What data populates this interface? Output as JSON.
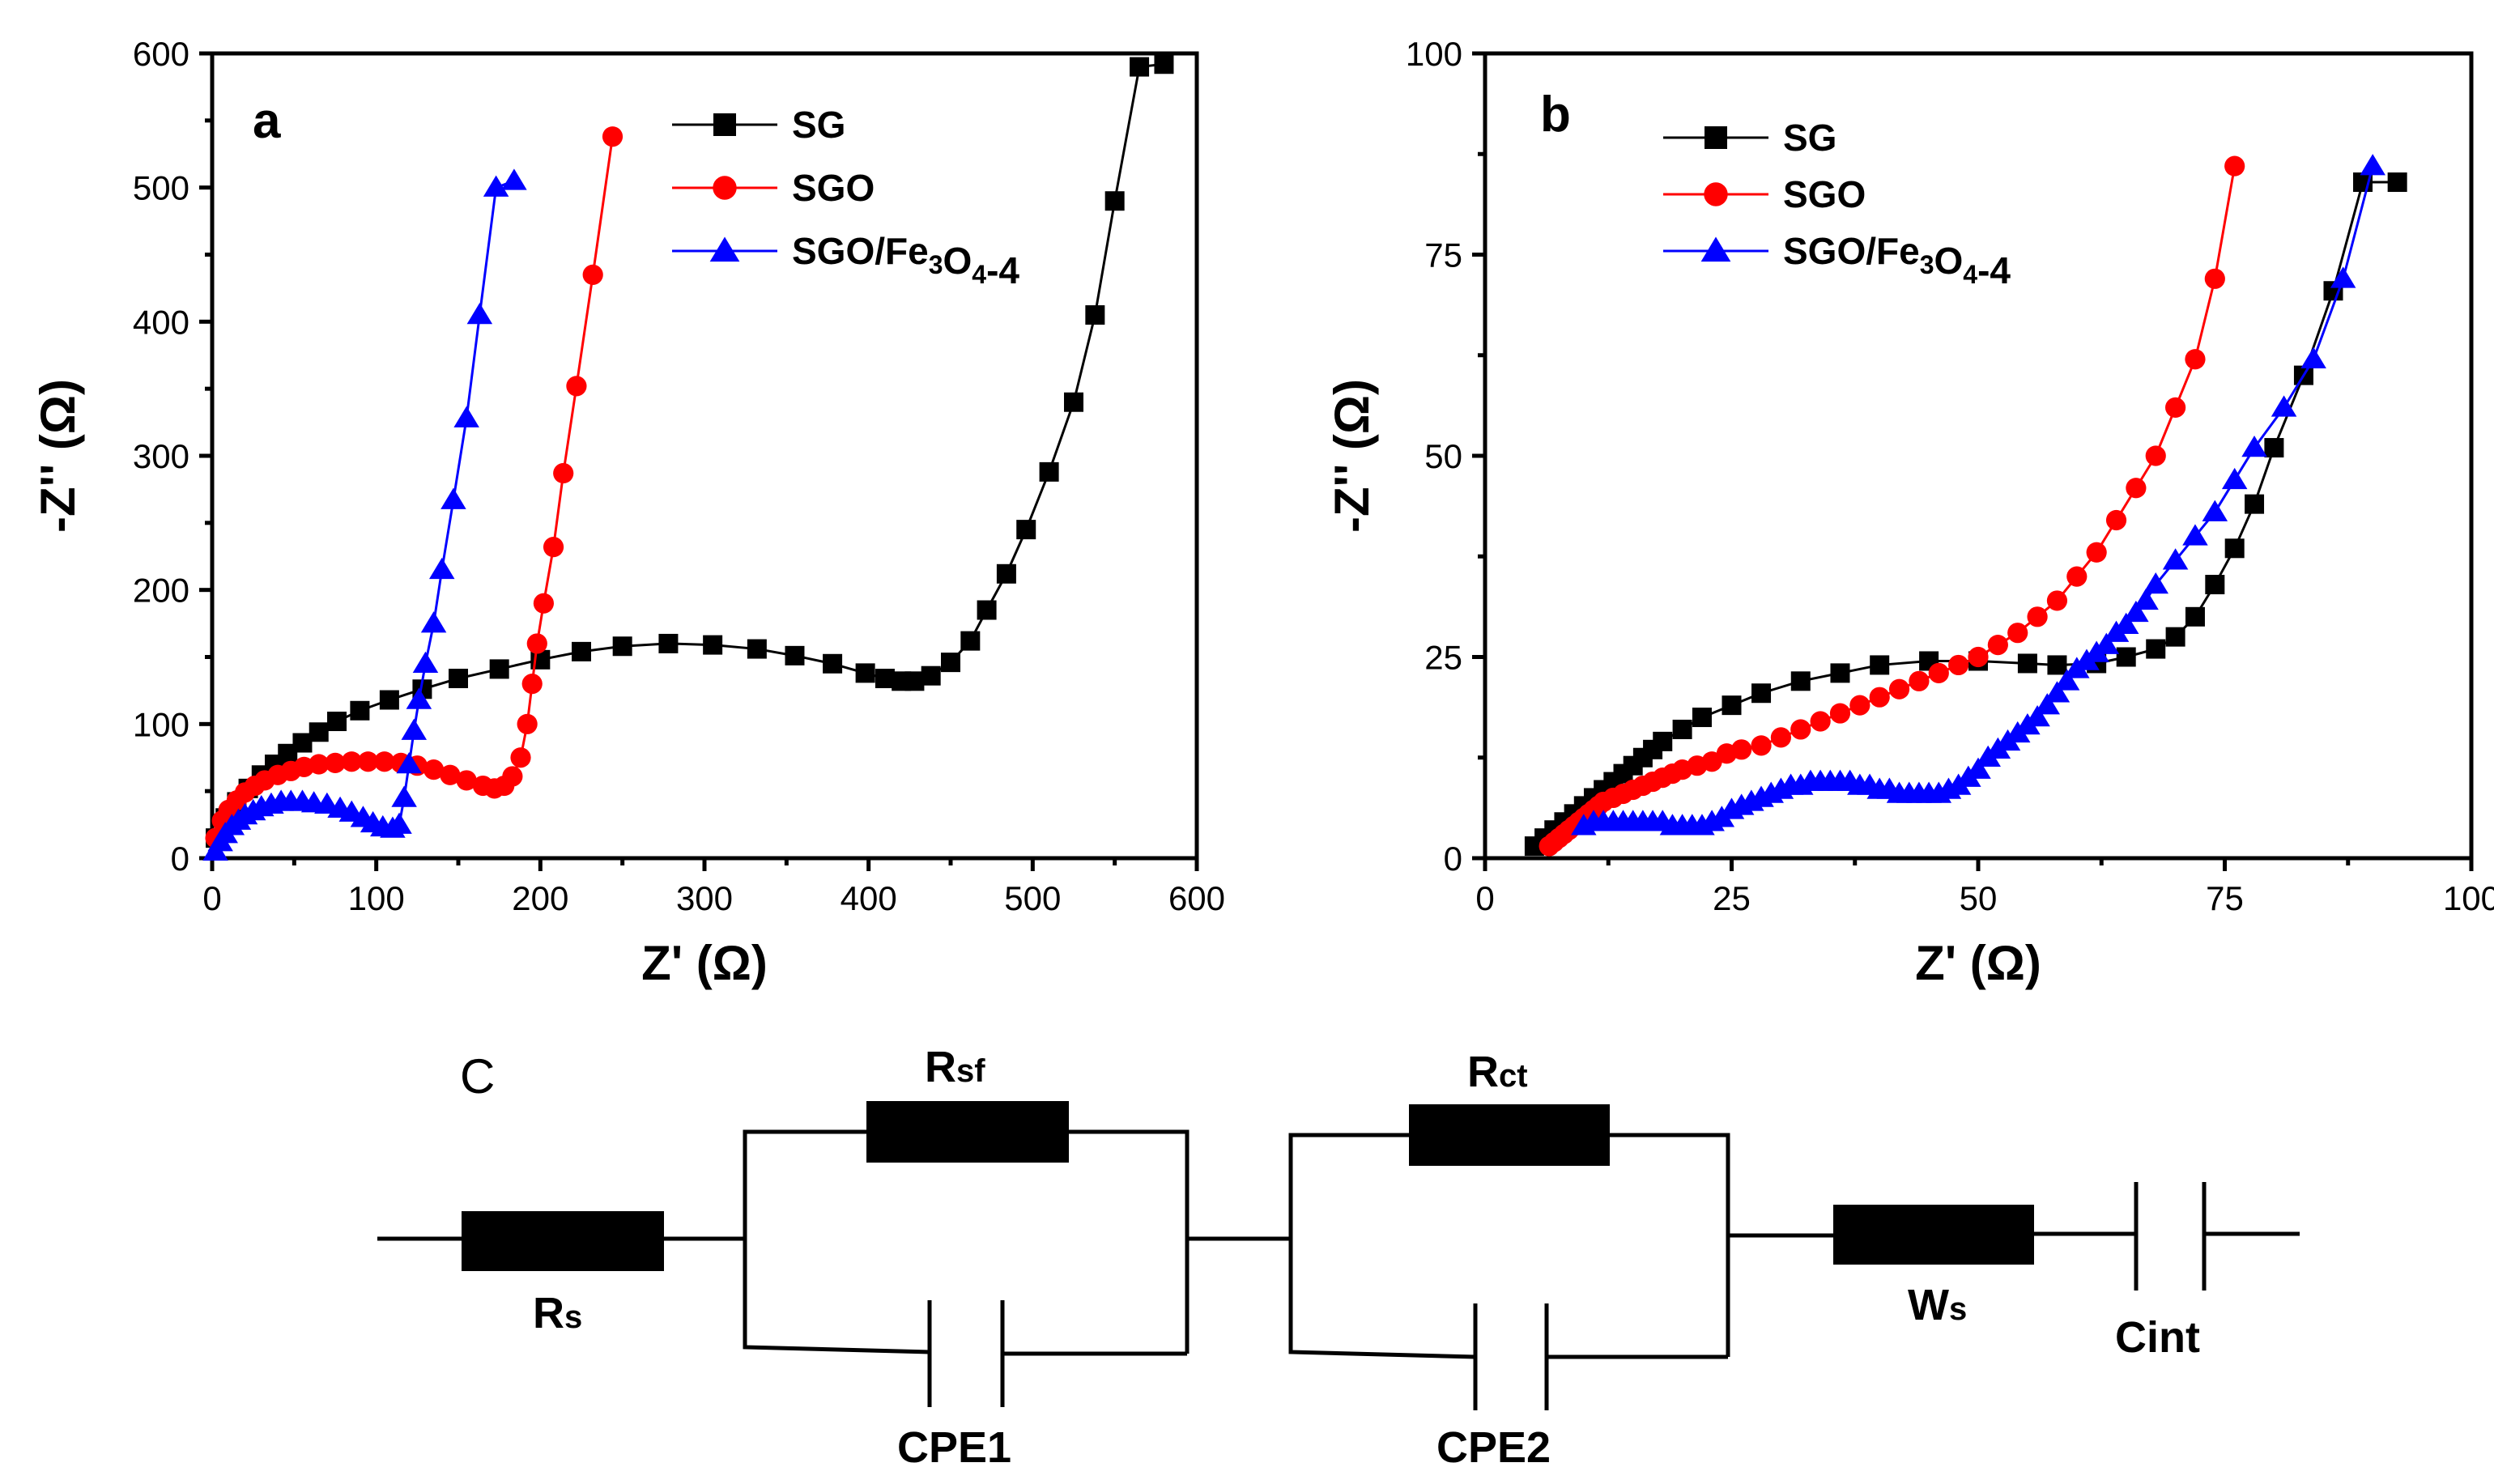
{
  "chart_data": [
    {
      "panel": "a",
      "type": "scatter",
      "xlabel": "Z' (Ω)",
      "ylabel": "-Z'' (Ω)",
      "xlim": [
        0,
        600
      ],
      "ylim": [
        0,
        600
      ],
      "xticks": [
        0,
        100,
        200,
        300,
        400,
        500,
        600
      ],
      "yticks": [
        0,
        100,
        200,
        300,
        400,
        500,
        600
      ],
      "legend_position": "top-center",
      "series": [
        {
          "name": "SG",
          "marker": "square",
          "color": "#000000",
          "x": [
            2,
            8,
            15,
            22,
            30,
            38,
            46,
            55,
            65,
            76,
            90,
            108,
            128,
            150,
            175,
            200,
            225,
            250,
            278,
            305,
            332,
            355,
            378,
            398,
            410,
            420,
            428,
            438,
            450,
            462,
            472,
            484,
            496,
            510,
            525,
            538,
            550,
            565,
            580
          ],
          "y": [
            15,
            30,
            42,
            52,
            62,
            70,
            78,
            86,
            94,
            102,
            110,
            118,
            126,
            134,
            141,
            148,
            154,
            158,
            160,
            159,
            156,
            151,
            145,
            138,
            134,
            132,
            132,
            136,
            146,
            162,
            185,
            212,
            245,
            288,
            340,
            405,
            490,
            590,
            592
          ]
        },
        {
          "name": "SGO",
          "marker": "circle",
          "color": "#ff0000",
          "x": [
            2,
            6,
            10,
            15,
            20,
            26,
            32,
            40,
            48,
            56,
            65,
            75,
            85,
            95,
            105,
            115,
            125,
            135,
            145,
            155,
            165,
            172,
            178,
            183,
            188,
            192,
            195,
            198,
            202,
            208,
            214,
            222,
            232,
            244
          ],
          "y": [
            15,
            28,
            36,
            43,
            49,
            54,
            58,
            62,
            65,
            68,
            70,
            71,
            72,
            72,
            72,
            71,
            69,
            66,
            62,
            58,
            54,
            52,
            54,
            61,
            75,
            100,
            130,
            160,
            190,
            232,
            287,
            352,
            435,
            538
          ]
        },
        {
          "name": "SGO/Fe₃O₄-4",
          "marker": "triangle",
          "color": "#0000ff",
          "x": [
            2,
            5,
            8,
            12,
            16,
            20,
            25,
            30,
            36,
            42,
            48,
            55,
            62,
            70,
            78,
            85,
            92,
            98,
            104,
            110,
            114,
            117,
            120,
            123,
            126,
            130,
            135,
            140,
            147,
            155,
            163,
            173,
            184
          ],
          "y": [
            5,
            12,
            18,
            24,
            28,
            32,
            35,
            38,
            40,
            42,
            42,
            42,
            41,
            40,
            37,
            34,
            30,
            26,
            23,
            22,
            25,
            45,
            70,
            95,
            118,
            145,
            175,
            215,
            267,
            328,
            405,
            500,
            505
          ]
        }
      ]
    },
    {
      "panel": "b",
      "type": "scatter",
      "xlabel": "Z' (Ω)",
      "ylabel": "-Z'' (Ω)",
      "xlim": [
        0,
        100
      ],
      "ylim": [
        0,
        100
      ],
      "xticks": [
        0,
        25,
        50,
        75,
        100
      ],
      "yticks": [
        0,
        25,
        50,
        75,
        100
      ],
      "legend_position": "top-left",
      "series": [
        {
          "name": "SG",
          "marker": "square",
          "color": "#000000",
          "x": [
            5,
            6,
            7,
            8,
            9,
            10,
            11,
            12,
            13,
            14,
            15,
            16,
            17,
            18,
            20,
            22,
            25,
            28,
            32,
            36,
            40,
            45,
            50,
            55,
            58,
            62,
            65,
            68,
            70,
            72,
            74,
            76,
            78,
            80,
            83,
            86,
            89,
            92.5
          ],
          "y": [
            1.5,
            2.5,
            3.5,
            4.5,
            5.5,
            6.5,
            7.5,
            8.5,
            9.5,
            10.5,
            11.5,
            12.5,
            13.5,
            14.5,
            16,
            17.5,
            19,
            20.5,
            22,
            23,
            24,
            24.5,
            24.5,
            24.2,
            24.0,
            24.2,
            25,
            26,
            27.5,
            30,
            34,
            38.5,
            44,
            51,
            60,
            70.5,
            84,
            84
          ]
        },
        {
          "name": "SGO",
          "marker": "circle",
          "color": "#ff0000",
          "x": [
            6.5,
            7,
            7.5,
            8,
            8.5,
            9,
            9.5,
            10,
            10.5,
            11,
            11.5,
            12,
            13,
            14,
            15,
            16,
            17,
            18,
            19,
            20,
            21.5,
            23,
            24.5,
            26,
            28,
            30,
            32,
            34,
            36,
            38,
            40,
            42,
            44,
            46,
            48,
            50,
            52,
            54,
            56,
            58,
            60,
            62,
            64,
            66,
            68,
            70,
            72,
            74,
            76
          ],
          "y": [
            1.5,
            2,
            2.5,
            3,
            3.5,
            4,
            4.5,
            5,
            5.5,
            6,
            6.5,
            7,
            7.5,
            8,
            8.5,
            9,
            9.5,
            10,
            10.5,
            11,
            11.5,
            12,
            13,
            13.5,
            14,
            15,
            16,
            17,
            18,
            19,
            20,
            21,
            22,
            23,
            24,
            25,
            26.5,
            28,
            30,
            32,
            35,
            38,
            42,
            46,
            50,
            56,
            62,
            72,
            86
          ]
        },
        {
          "name": "SGO/Fe₃O₄-4",
          "marker": "triangle",
          "color": "#0000ff",
          "x": [
            10,
            11,
            12,
            13,
            14,
            15,
            16,
            17,
            18,
            19,
            20,
            21,
            22,
            23,
            24,
            25,
            26,
            27,
            28,
            29,
            30,
            31,
            32,
            33,
            34,
            35,
            36,
            37,
            38,
            39,
            40,
            41,
            42,
            43,
            44,
            45,
            46,
            47,
            48,
            49,
            50,
            51,
            52,
            53,
            54,
            55,
            56,
            57,
            58,
            59,
            60,
            61,
            62,
            63,
            64,
            65,
            66,
            67,
            68,
            70,
            72,
            74,
            76,
            78,
            81,
            84,
            87,
            90
          ],
          "y": [
            4,
            4.5,
            4.5,
            4.5,
            4.5,
            4.5,
            4.5,
            4.5,
            4.5,
            4,
            4,
            4,
            4,
            4.5,
            5,
            6,
            6.5,
            7,
            7.5,
            8,
            8.5,
            9,
            9,
            9.5,
            9.5,
            9.5,
            9.5,
            9.5,
            9,
            9,
            8.5,
            8.5,
            8,
            8,
            8,
            8,
            8,
            8.5,
            9,
            10,
            11,
            12.5,
            13.5,
            14.5,
            15.5,
            16.5,
            17.5,
            19,
            20.5,
            22,
            23.5,
            24.5,
            25.5,
            26.5,
            28,
            29,
            30.5,
            32,
            34,
            37,
            40,
            43,
            47,
            51,
            56,
            62,
            72,
            86
          ]
        }
      ]
    }
  ],
  "circuit": {
    "panel_letter": "C",
    "elements": {
      "rs": {
        "label": "Rs",
        "main": "R",
        "sub": "s"
      },
      "rsf": {
        "label": "Rsf",
        "main": "R",
        "sub": "sf"
      },
      "cpe1": {
        "label": "CPE1"
      },
      "rct": {
        "label": "Rct",
        "main": "R",
        "sub": "ct"
      },
      "cpe2": {
        "label": "CPE2"
      },
      "ws": {
        "label": "Ws",
        "main": "W",
        "sub": "s"
      },
      "cint": {
        "label": "Cint"
      }
    }
  }
}
